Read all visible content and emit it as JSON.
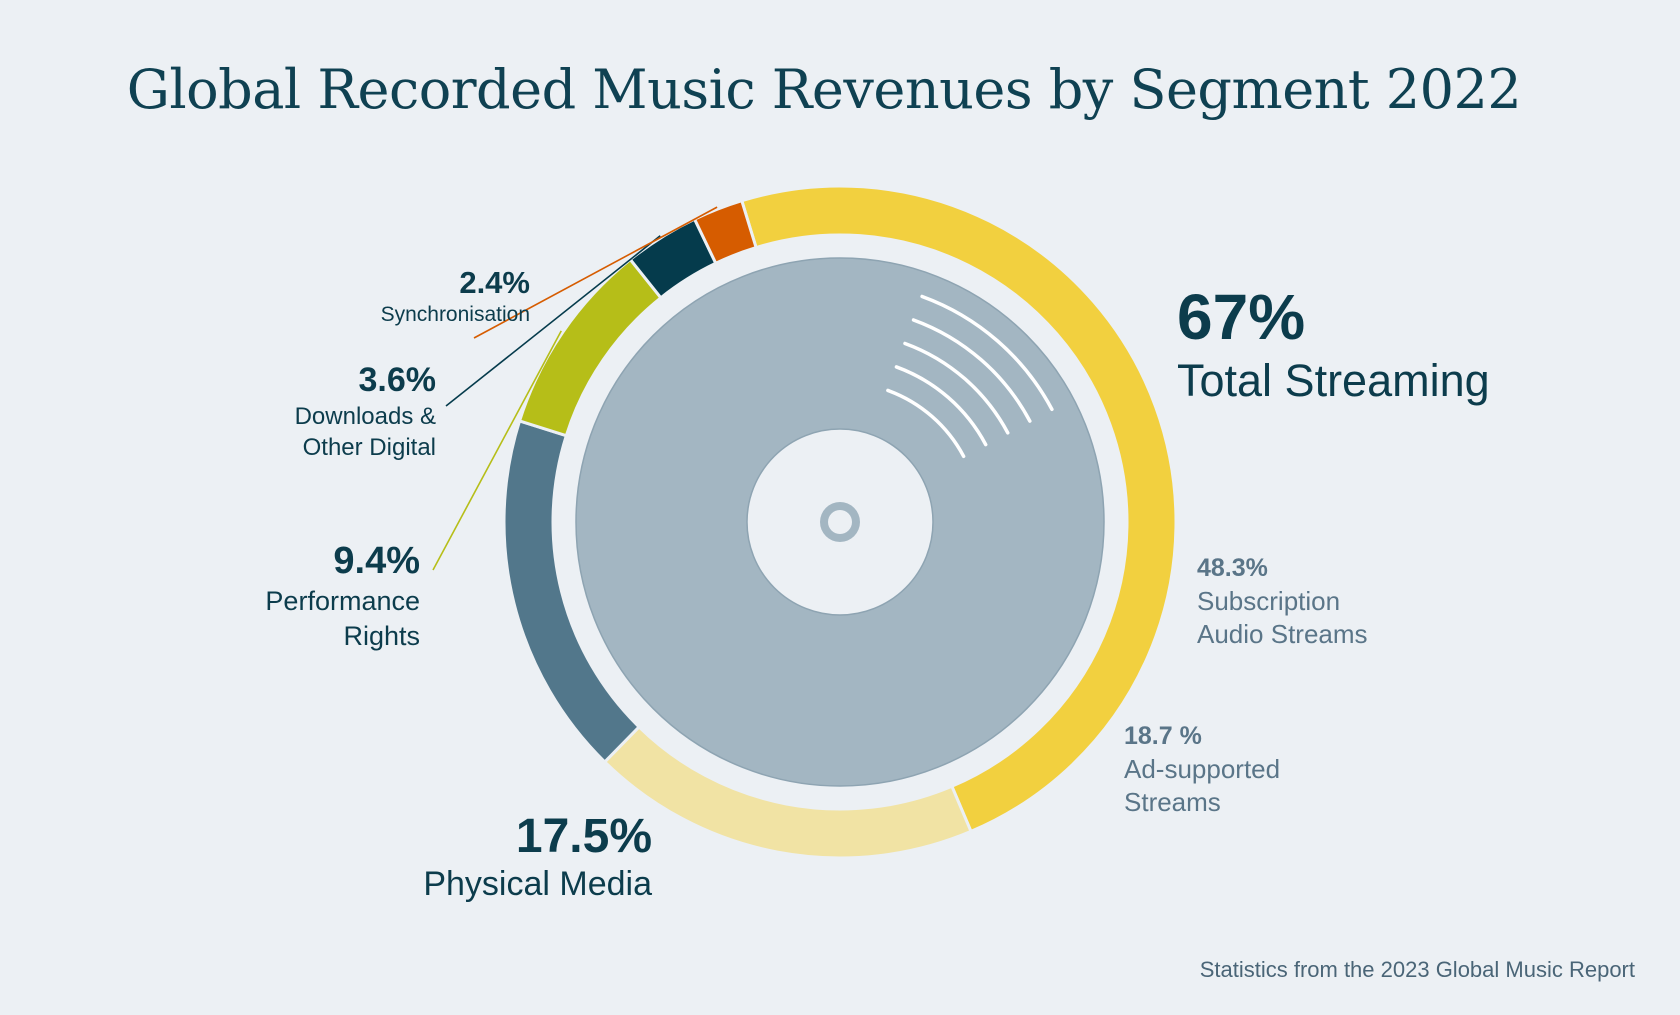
{
  "title": "Global Recorded Music Revenues by Segment 2022",
  "source": "Statistics from the 2023 Global Music Report",
  "colors": {
    "background": "#ecf0f4",
    "subscription": "#f2d03f",
    "ad_supported": "#f1e3a4",
    "physical": "#52778b",
    "performance": "#b6be18",
    "downloads": "#053b4c",
    "synchronisation": "#d65c00",
    "disc": "#a3b6c2",
    "text_dark": "#0c3c4c",
    "text_muted": "#5a7588"
  },
  "icons": {
    "center": "vinyl-record-icon"
  },
  "chart_data": {
    "type": "pie",
    "style": "donut",
    "series": [
      {
        "name": "Subscription Audio Streams",
        "value": 48.3,
        "label": "48.3%"
      },
      {
        "name": "Ad-supported Streams",
        "value": 18.7,
        "label": "18.7 %"
      },
      {
        "name": "Physical Media",
        "value": 17.5,
        "label": "17.5%"
      },
      {
        "name": "Performance Rights",
        "value": 9.4,
        "label": "9.4%"
      },
      {
        "name": "Downloads & Other Digital",
        "value": 3.6,
        "label": "3.6%"
      },
      {
        "name": "Synchronisation",
        "value": 2.4,
        "label": "2.4%"
      }
    ],
    "group": {
      "name": "Total Streaming",
      "label": "67%",
      "members": [
        "Subscription Audio Streams",
        "Ad-supported Streams"
      ]
    }
  },
  "labels": {
    "total_streaming": {
      "pct": "67%",
      "name": "Total Streaming"
    },
    "subscription": {
      "pct": "48.3%",
      "line1": "Subscription",
      "line2": "Audio Streams"
    },
    "ad_supported": {
      "pct": "18.7 %",
      "line1": "Ad-supported",
      "line2": "Streams"
    },
    "physical": {
      "pct": "17.5%",
      "name": "Physical Media"
    },
    "performance": {
      "pct": "9.4%",
      "line1": "Performance",
      "line2": "Rights"
    },
    "downloads": {
      "pct": "3.6%",
      "line1": "Downloads &",
      "line2": "Other Digital"
    },
    "synchronisation": {
      "pct": "2.4%",
      "name": "Synchronisation"
    }
  }
}
